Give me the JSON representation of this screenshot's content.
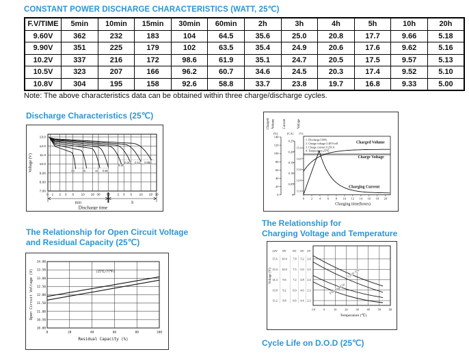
{
  "accent_color": "#2b95d5",
  "header": {
    "title": "CONSTANT POWER DISCHARGE CHARACTERISTICS (WATT, 25℃)"
  },
  "table": {
    "columns": [
      "F.V/TIME",
      "5min",
      "10min",
      "15min",
      "30min",
      "60min",
      "2h",
      "3h",
      "4h",
      "5h",
      "10h",
      "20h"
    ],
    "rows": [
      [
        "9.60V",
        "362",
        "232",
        "183",
        "104",
        "64.5",
        "35.6",
        "25.0",
        "20.8",
        "17.7",
        "9.66",
        "5.18"
      ],
      [
        "9.90V",
        "351",
        "225",
        "179",
        "102",
        "63.5",
        "35.4",
        "24.9",
        "20.6",
        "17.6",
        "9.62",
        "5.16"
      ],
      [
        "10.2V",
        "337",
        "216",
        "172",
        "98.6",
        "61.9",
        "35.1",
        "24.7",
        "20.5",
        "17.5",
        "9.57",
        "5.13"
      ],
      [
        "10.5V",
        "323",
        "207",
        "166",
        "96.2",
        "60.7",
        "34.6",
        "24.5",
        "20.3",
        "17.4",
        "9.52",
        "5.10"
      ],
      [
        "10.8V",
        "304",
        "195",
        "158",
        "92.6",
        "58.8",
        "33.7",
        "23.8",
        "19.7",
        "16.8",
        "9.33",
        "5.00"
      ]
    ]
  },
  "note": "Note: The above characteristics data can be obtained within three charge/discharge cycles.",
  "titles": {
    "cycle_life": "Cycle Life on D.O.D (25℃)"
  },
  "chart_data": [
    {
      "id": "discharge-characteristics",
      "type": "line",
      "title": "Discharge Characteristics (25℃)",
      "xlabel": "Discharge time",
      "ylabel": "Voltage (V)",
      "yticks": [
        "13.0",
        "12.0",
        "11.0",
        "10.0",
        "9.00",
        "8.00",
        "7.00"
      ],
      "ylim": [
        7.0,
        13.3
      ],
      "origin_label": "0",
      "x_units": [
        {
          "label": "min",
          "ticks": [
            1,
            2,
            3,
            5,
            10,
            20,
            30,
            60
          ]
        },
        {
          "label": "h",
          "ticks": [
            2,
            3,
            5,
            10,
            20,
            30
          ]
        }
      ],
      "series": [
        {
          "name": "3C",
          "duration_min": 6,
          "v_start": 11.95,
          "v_knee": 11.3,
          "end_voltage": 9.5,
          "label_t": 5,
          "label_v": 9.25
        },
        {
          "name": "2C",
          "duration_min": 13,
          "v_start": 12.15,
          "v_knee": 11.55,
          "end_voltage": 9.55,
          "label_t": 11,
          "label_v": 9.25
        },
        {
          "name": "1C",
          "duration_min": 33,
          "v_start": 12.3,
          "v_knee": 11.75,
          "end_voltage": 9.6,
          "label_t": 27,
          "label_v": 9.25
        },
        {
          "name": "0.6C",
          "duration_min": 60,
          "v_start": 12.45,
          "v_knee": 11.9,
          "end_voltage": 9.65,
          "label_t": 50,
          "label_v": 9.25
        },
        {
          "name": "0.4C",
          "duration_min": 155,
          "v_start": 12.55,
          "v_knee": 12.0,
          "end_voltage": 9.9,
          "label_t": 150,
          "label_v": 9.85
        },
        {
          "name": "0.2C",
          "duration_min": 285,
          "v_start": 12.65,
          "v_knee": 12.1,
          "end_voltage": 10.2,
          "label_t": 235,
          "label_v": 10.15
        },
        {
          "name": "0.1C",
          "duration_min": 590,
          "v_start": 12.72,
          "v_knee": 12.2,
          "end_voltage": 10.3,
          "label_t": 480,
          "label_v": 10.15
        },
        {
          "name": "0.05C",
          "duration_min": 1250,
          "v_start": 12.78,
          "v_knee": 12.3,
          "end_voltage": 10.45,
          "label_t": 1000,
          "label_v": 10.15
        }
      ],
      "leader_lines": [
        {
          "v": 9.55,
          "t_from": 4.5,
          "t_to": 58
        },
        {
          "v": 10.45,
          "t_from": 140,
          "t_to": 1500
        }
      ]
    },
    {
      "id": "charge-characteristics",
      "type": "line",
      "xlabel": "Charging time(hours)",
      "xticks": [
        0,
        2,
        4,
        6,
        8,
        10,
        12,
        14,
        16,
        18,
        20
      ],
      "axes": {
        "charged_volume": {
          "label": "Charged Volume",
          "unit": "(%)",
          "ticks": [
            "140",
            "120",
            "100",
            "80",
            "60",
            "40",
            "20",
            "0"
          ]
        },
        "current": {
          "label": "Current",
          "unit": "(CA)",
          "ticks": [
            "0.25",
            "0.20",
            "0.15",
            "0.10",
            "0.05",
            "0"
          ]
        },
        "voltage": {
          "label": "Voltage",
          "unit": "(V)",
          "ticks": [
            "15.0",
            "14.0",
            "13.0",
            "12.0",
            "11.0"
          ]
        }
      },
      "conditions": [
        "1. Discharge:100%",
        "2. Charge voltage:2.40V/cell",
        "3. Charge current:0.25CA",
        "4. Temperature:25℃"
      ],
      "curve_labels": [
        "Charged Volume",
        "Charge Voltage",
        "Charging Current"
      ],
      "charge_voltage_V": 14.4,
      "current_peak_CA": 0.205,
      "peak_time_h": 3.8,
      "volume_final_pct": 110
    },
    {
      "id": "ocv-vs-residual-capacity",
      "type": "line",
      "title_lines": [
        "The Relationship for Open Circuit Voltage",
        "and Residual Capacity (25℃)"
      ],
      "xlabel": "Residual Capacity (%)",
      "ylabel": "Open Circuit Voltage (V)",
      "annotation": "(25℃/77℉)",
      "yticks": [
        "14.00",
        "13.50",
        "13.00",
        "12.50",
        "12.00",
        "11.50",
        "11.00",
        "10.50",
        "10.00"
      ],
      "xticks": [
        0,
        20,
        40,
        60,
        80,
        100
      ],
      "series": [
        {
          "name": "upper",
          "points": [
            [
              0,
              11.9
            ],
            [
              100,
              13.08
            ]
          ]
        },
        {
          "name": "lower",
          "points": [
            [
              0,
              11.68
            ],
            [
              100,
              12.88
            ]
          ]
        }
      ]
    },
    {
      "id": "charging-voltage-vs-temperature",
      "type": "line",
      "title_lines": [
        "The Relationship for",
        "Charging Voltage and Temperature"
      ],
      "xlabel": "Temperature (℃)",
      "ylabel": "Voltage (V)",
      "xticks": [
        -10,
        0,
        10,
        20,
        30,
        40,
        50,
        60
      ],
      "scales": [
        {
          "name": "12V",
          "ticks": [
            "15.6",
            "15.0",
            "14.4",
            "13.8",
            "13.2"
          ]
        },
        {
          "name": "8V",
          "ticks": [
            "10.4",
            "10.0",
            "9.6",
            "9.2",
            "8.8"
          ]
        },
        {
          "name": "6V",
          "ticks": [
            "7.8",
            "7.5",
            "7.2",
            "6.9",
            "6.6"
          ]
        },
        {
          "name": "4V",
          "ticks": [
            "5.2",
            "5.0",
            "4.8",
            "4.6",
            "4.4"
          ]
        },
        {
          "name": "2V",
          "ticks": [
            "2.6",
            "2.5",
            "2.4",
            "2.3",
            "2.2"
          ]
        }
      ],
      "bands": [
        {
          "name": "Cycle Use",
          "upper": [
            [
              -10,
              2.63
            ],
            [
              20,
              2.47
            ],
            [
              53,
              2.34
            ]
          ],
          "lower": [
            [
              -10,
              2.57
            ],
            [
              20,
              2.41
            ],
            [
              53,
              2.28
            ]
          ]
        },
        {
          "name": "Floating Use",
          "upper": [
            [
              -10,
              2.44
            ],
            [
              20,
              2.31
            ],
            [
              53,
              2.23
            ]
          ],
          "lower": [
            [
              -10,
              2.38
            ],
            [
              20,
              2.25
            ],
            [
              53,
              2.18
            ]
          ]
        }
      ]
    }
  ]
}
